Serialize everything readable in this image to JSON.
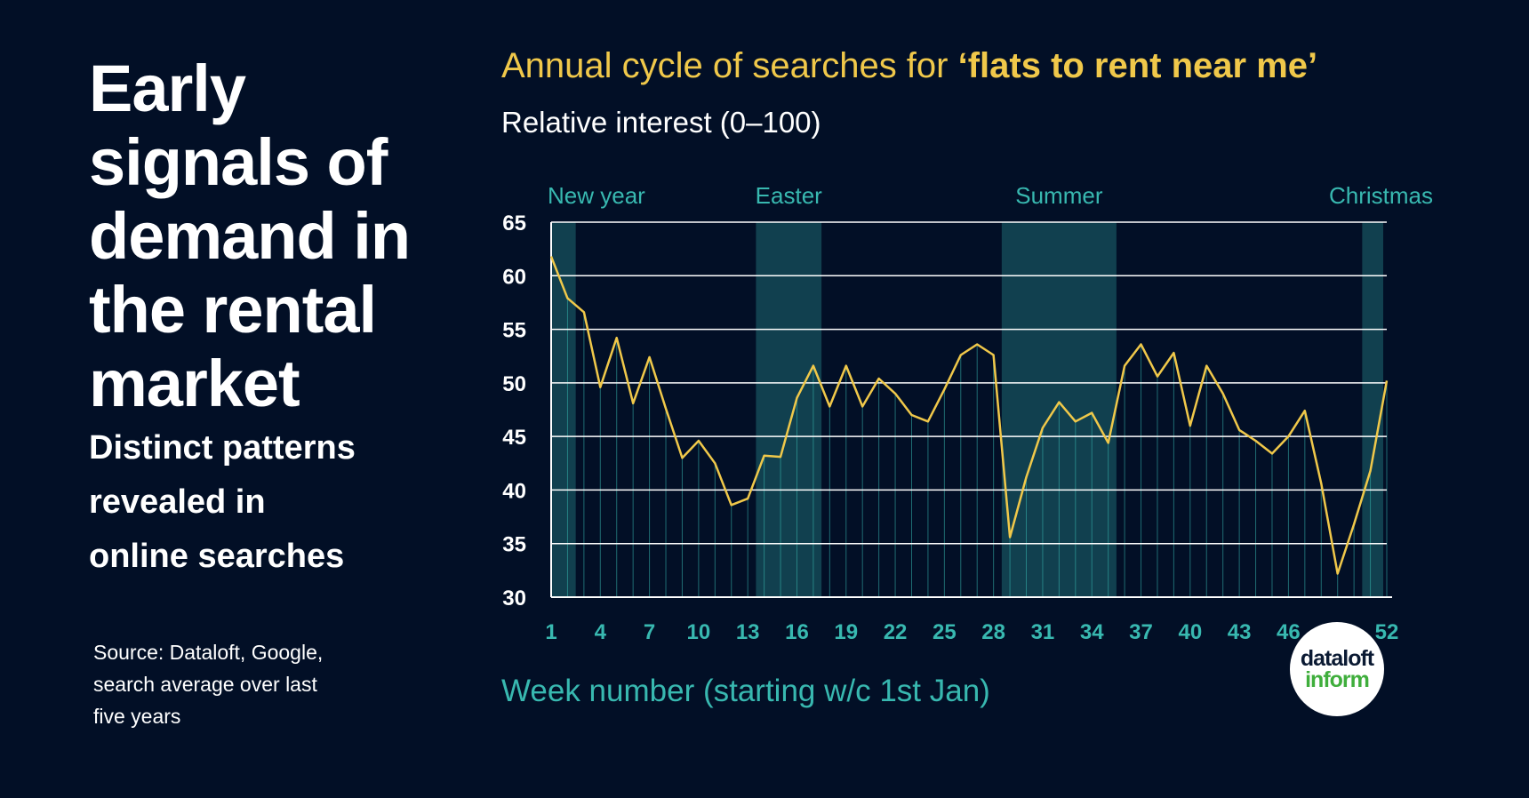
{
  "headline": {
    "lines": [
      "Early",
      "signals of",
      "demand in",
      "the rental",
      "market"
    ]
  },
  "subhead": {
    "lines": [
      "Distinct patterns",
      "revealed in",
      "online searches"
    ]
  },
  "source": {
    "lines": [
      "Source: Dataloft, Google,",
      "search average over last",
      "five years"
    ]
  },
  "logo": {
    "line1": "dataloft",
    "line2": "inform"
  },
  "colors": {
    "background": "#020f26",
    "line": "#f0c84a",
    "band": "#11404f",
    "accent_teal": "#38b8b0",
    "gridline": "#ffffff"
  },
  "chart_data": {
    "type": "line",
    "title_prefix": "Annual cycle of searches for ",
    "title_highlight": "‘flats to rent near me’",
    "subtitle": "Relative interest (0–100)",
    "xlabel": "Week number (starting w/c 1st Jan)",
    "ylabel": "",
    "ylim": [
      30,
      65
    ],
    "xlim": [
      1,
      52
    ],
    "yticks": [
      30,
      35,
      40,
      45,
      50,
      55,
      60,
      65
    ],
    "xticks": [
      1,
      4,
      7,
      10,
      13,
      16,
      19,
      22,
      25,
      28,
      31,
      34,
      37,
      40,
      43,
      46,
      52
    ],
    "grid": true,
    "series": [
      {
        "values": [
          61.8,
          57.9,
          56.6,
          49.6,
          54.2,
          48.1,
          52.4,
          47.6,
          43.0,
          44.6,
          42.5,
          38.6,
          39.2,
          43.2,
          43.1,
          48.6,
          51.6,
          47.8,
          51.6,
          47.8,
          50.4,
          49.0,
          47.0,
          46.4,
          49.4,
          52.6,
          53.6,
          52.6,
          35.6,
          41.2,
          45.8,
          48.2,
          46.4,
          47.2,
          44.4,
          51.6,
          53.6,
          50.6,
          52.8,
          46.0,
          51.6,
          49.0,
          45.6,
          44.6,
          43.4,
          45.0,
          47.4,
          40.6,
          32.2,
          36.8,
          41.8,
          50.2
        ]
      }
    ],
    "bands": [
      {
        "label": "New year",
        "start": 1,
        "end": 2
      },
      {
        "label": "Easter",
        "start": 14,
        "end": 17
      },
      {
        "label": "Summer",
        "start": 29,
        "end": 35
      },
      {
        "label": "Christmas",
        "start": 51,
        "end": 52
      }
    ]
  }
}
